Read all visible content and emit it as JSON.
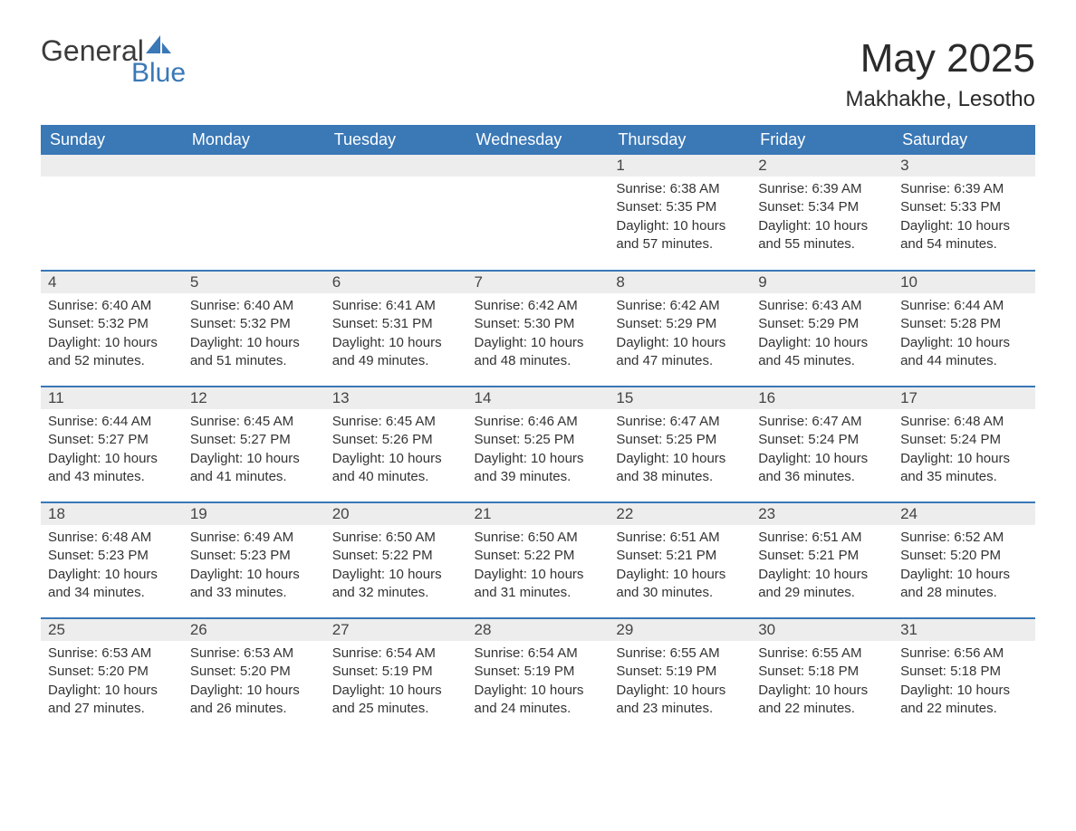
{
  "brand": {
    "name_part1": "General",
    "name_part2": "Blue",
    "accent_color": "#3a78b6",
    "text_color": "#3b3b3b"
  },
  "title": "May 2025",
  "location": "Makhakhe, Lesotho",
  "colors": {
    "header_bg": "#3a78b6",
    "header_text": "#ffffff",
    "daynum_bg": "#ededed",
    "border": "#3a78b6",
    "body_text": "#333333",
    "page_bg": "#ffffff"
  },
  "weekdays": [
    "Sunday",
    "Monday",
    "Tuesday",
    "Wednesday",
    "Thursday",
    "Friday",
    "Saturday"
  ],
  "weeks": [
    [
      null,
      null,
      null,
      null,
      {
        "day": "1",
        "sunrise": "6:38 AM",
        "sunset": "5:35 PM",
        "daylight": "10 hours and 57 minutes."
      },
      {
        "day": "2",
        "sunrise": "6:39 AM",
        "sunset": "5:34 PM",
        "daylight": "10 hours and 55 minutes."
      },
      {
        "day": "3",
        "sunrise": "6:39 AM",
        "sunset": "5:33 PM",
        "daylight": "10 hours and 54 minutes."
      }
    ],
    [
      {
        "day": "4",
        "sunrise": "6:40 AM",
        "sunset": "5:32 PM",
        "daylight": "10 hours and 52 minutes."
      },
      {
        "day": "5",
        "sunrise": "6:40 AM",
        "sunset": "5:32 PM",
        "daylight": "10 hours and 51 minutes."
      },
      {
        "day": "6",
        "sunrise": "6:41 AM",
        "sunset": "5:31 PM",
        "daylight": "10 hours and 49 minutes."
      },
      {
        "day": "7",
        "sunrise": "6:42 AM",
        "sunset": "5:30 PM",
        "daylight": "10 hours and 48 minutes."
      },
      {
        "day": "8",
        "sunrise": "6:42 AM",
        "sunset": "5:29 PM",
        "daylight": "10 hours and 47 minutes."
      },
      {
        "day": "9",
        "sunrise": "6:43 AM",
        "sunset": "5:29 PM",
        "daylight": "10 hours and 45 minutes."
      },
      {
        "day": "10",
        "sunrise": "6:44 AM",
        "sunset": "5:28 PM",
        "daylight": "10 hours and 44 minutes."
      }
    ],
    [
      {
        "day": "11",
        "sunrise": "6:44 AM",
        "sunset": "5:27 PM",
        "daylight": "10 hours and 43 minutes."
      },
      {
        "day": "12",
        "sunrise": "6:45 AM",
        "sunset": "5:27 PM",
        "daylight": "10 hours and 41 minutes."
      },
      {
        "day": "13",
        "sunrise": "6:45 AM",
        "sunset": "5:26 PM",
        "daylight": "10 hours and 40 minutes."
      },
      {
        "day": "14",
        "sunrise": "6:46 AM",
        "sunset": "5:25 PM",
        "daylight": "10 hours and 39 minutes."
      },
      {
        "day": "15",
        "sunrise": "6:47 AM",
        "sunset": "5:25 PM",
        "daylight": "10 hours and 38 minutes."
      },
      {
        "day": "16",
        "sunrise": "6:47 AM",
        "sunset": "5:24 PM",
        "daylight": "10 hours and 36 minutes."
      },
      {
        "day": "17",
        "sunrise": "6:48 AM",
        "sunset": "5:24 PM",
        "daylight": "10 hours and 35 minutes."
      }
    ],
    [
      {
        "day": "18",
        "sunrise": "6:48 AM",
        "sunset": "5:23 PM",
        "daylight": "10 hours and 34 minutes."
      },
      {
        "day": "19",
        "sunrise": "6:49 AM",
        "sunset": "5:23 PM",
        "daylight": "10 hours and 33 minutes."
      },
      {
        "day": "20",
        "sunrise": "6:50 AM",
        "sunset": "5:22 PM",
        "daylight": "10 hours and 32 minutes."
      },
      {
        "day": "21",
        "sunrise": "6:50 AM",
        "sunset": "5:22 PM",
        "daylight": "10 hours and 31 minutes."
      },
      {
        "day": "22",
        "sunrise": "6:51 AM",
        "sunset": "5:21 PM",
        "daylight": "10 hours and 30 minutes."
      },
      {
        "day": "23",
        "sunrise": "6:51 AM",
        "sunset": "5:21 PM",
        "daylight": "10 hours and 29 minutes."
      },
      {
        "day": "24",
        "sunrise": "6:52 AM",
        "sunset": "5:20 PM",
        "daylight": "10 hours and 28 minutes."
      }
    ],
    [
      {
        "day": "25",
        "sunrise": "6:53 AM",
        "sunset": "5:20 PM",
        "daylight": "10 hours and 27 minutes."
      },
      {
        "day": "26",
        "sunrise": "6:53 AM",
        "sunset": "5:20 PM",
        "daylight": "10 hours and 26 minutes."
      },
      {
        "day": "27",
        "sunrise": "6:54 AM",
        "sunset": "5:19 PM",
        "daylight": "10 hours and 25 minutes."
      },
      {
        "day": "28",
        "sunrise": "6:54 AM",
        "sunset": "5:19 PM",
        "daylight": "10 hours and 24 minutes."
      },
      {
        "day": "29",
        "sunrise": "6:55 AM",
        "sunset": "5:19 PM",
        "daylight": "10 hours and 23 minutes."
      },
      {
        "day": "30",
        "sunrise": "6:55 AM",
        "sunset": "5:18 PM",
        "daylight": "10 hours and 22 minutes."
      },
      {
        "day": "31",
        "sunrise": "6:56 AM",
        "sunset": "5:18 PM",
        "daylight": "10 hours and 22 minutes."
      }
    ]
  ],
  "labels": {
    "sunrise": "Sunrise:",
    "sunset": "Sunset:",
    "daylight": "Daylight:"
  }
}
